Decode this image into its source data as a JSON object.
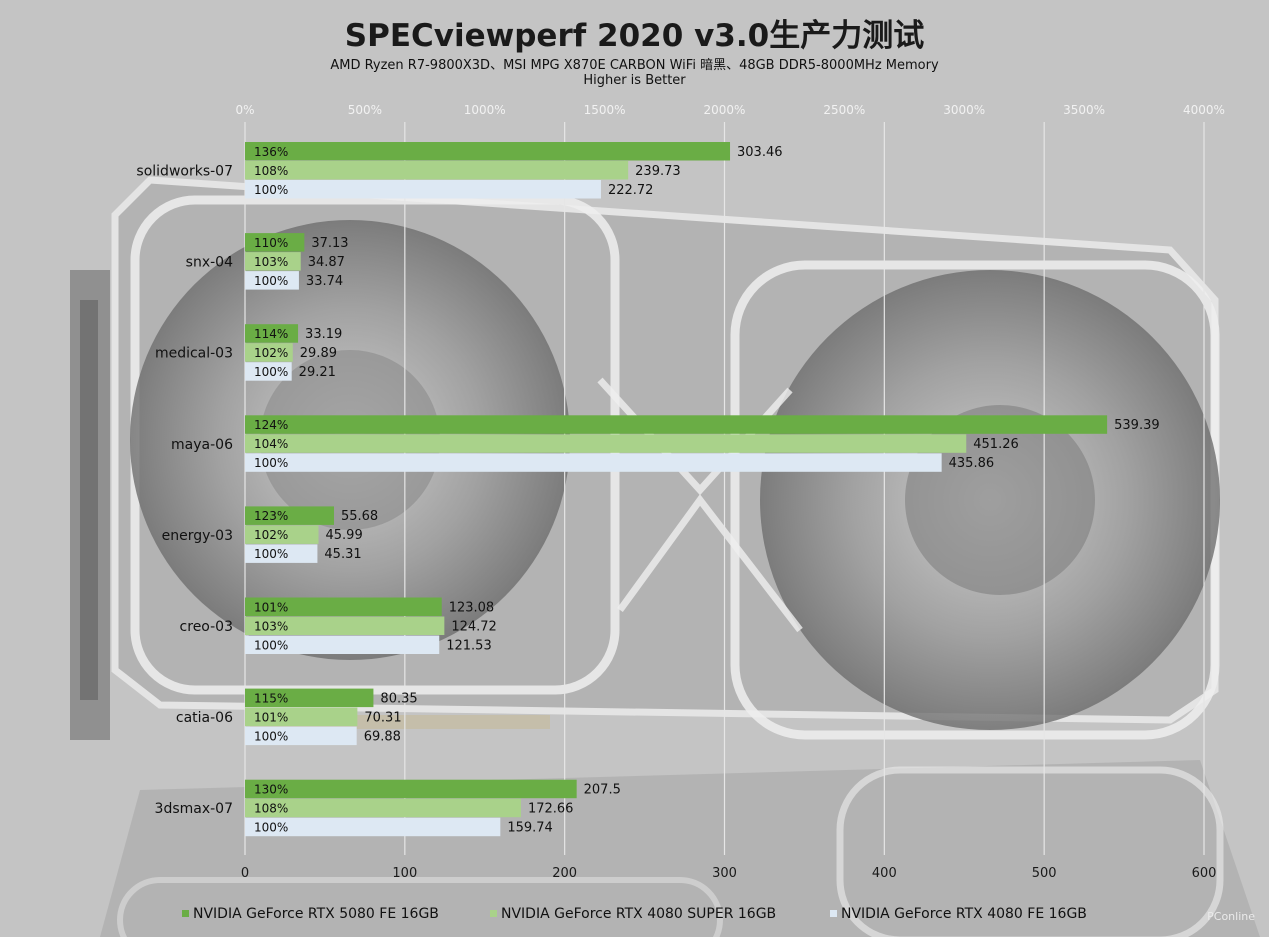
{
  "header": {
    "title": "SPECviewperf 2020 v3.0生产力测试",
    "subtitle": "AMD Ryzen R7-9800X3D、MSI MPG X870E CARBON WiFi 暗黑、48GB DDR5-8000MHz Memory",
    "note": "Higher is Better"
  },
  "watermark": "PConline",
  "colors": {
    "background": "#c4c4c4",
    "rtx5080": "#6aad45",
    "rtx4080super": "#a9d28a",
    "rtx4080": "#dde8f3",
    "gridline": "#e6e6e6"
  },
  "chart_data": {
    "type": "bar",
    "orientation": "horizontal",
    "categories": [
      "solidworks-07",
      "snx-04",
      "medical-03",
      "maya-06",
      "energy-03",
      "creo-03",
      "catia-06",
      "3dsmax-07"
    ],
    "series": [
      {
        "name": "NVIDIA GeForce RTX 5080 FE 16GB",
        "color": "#6aad45",
        "values": [
          303.46,
          37.13,
          33.19,
          539.39,
          55.68,
          123.08,
          80.35,
          207.5
        ],
        "percent_labels": [
          "136%",
          "110%",
          "114%",
          "124%",
          "123%",
          "101%",
          "115%",
          "130%"
        ]
      },
      {
        "name": "NVIDIA GeForce RTX 4080 SUPER 16GB",
        "color": "#a9d28a",
        "values": [
          239.73,
          34.87,
          29.89,
          451.26,
          45.99,
          124.72,
          70.31,
          172.66
        ],
        "percent_labels": [
          "108%",
          "103%",
          "102%",
          "104%",
          "102%",
          "103%",
          "101%",
          "108%"
        ]
      },
      {
        "name": "NVIDIA GeForce RTX 4080 FE 16GB",
        "color": "#dde8f3",
        "values": [
          222.72,
          33.74,
          29.21,
          435.86,
          45.31,
          121.53,
          69.88,
          159.74
        ],
        "percent_labels": [
          "100%",
          "100%",
          "100%",
          "100%",
          "100%",
          "100%",
          "100%",
          "100%"
        ]
      }
    ],
    "x_bottom": {
      "range": [
        0,
        600
      ],
      "ticks": [
        "0",
        "100",
        "200",
        "300",
        "400",
        "500",
        "600"
      ]
    },
    "x_top": {
      "range": [
        0,
        4000
      ],
      "ticks": [
        "0%",
        "500%",
        "1000%",
        "1500%",
        "2000%",
        "2500%",
        "3000%",
        "3500%",
        "4000%"
      ]
    },
    "grid": true,
    "legend_position": "bottom"
  }
}
